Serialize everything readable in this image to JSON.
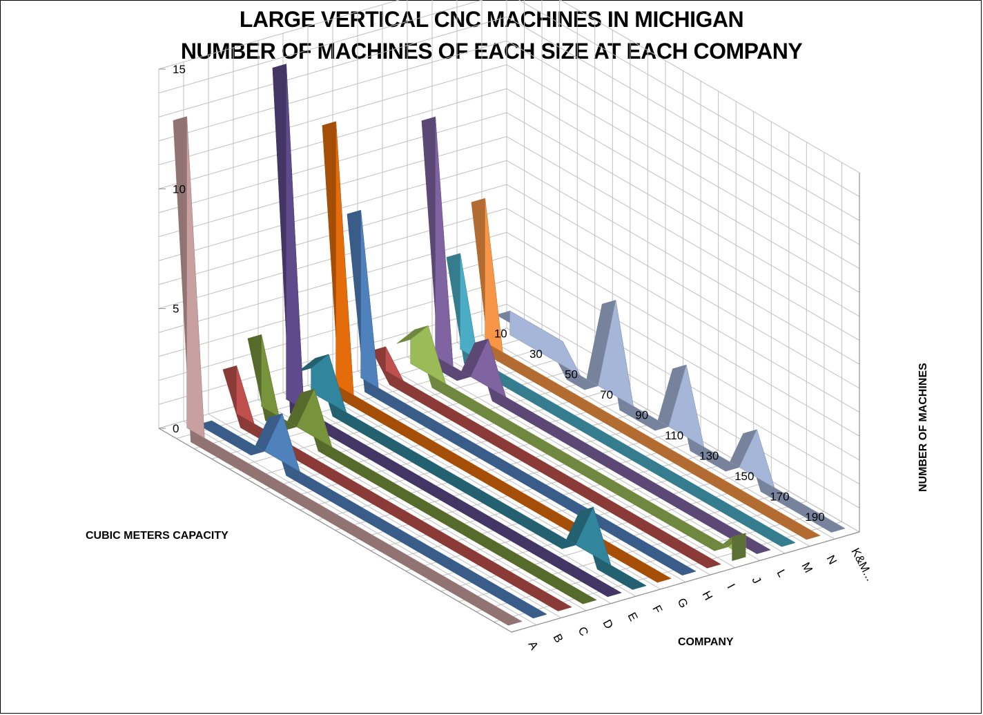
{
  "chart_data": {
    "type": "area",
    "title_line1": "LARGE VERTICAL CNC MACHINES IN MICHIGAN",
    "title_line2": "NUMBER OF MACHINES OF EACH SIZE AT EACH COMPANY",
    "xlabel": "CUBIC METERS CAPACITY",
    "zlabel": "COMPANY",
    "ylabel": "NUMBER OF MACHINES",
    "y_ticks": [
      "0",
      "5",
      "10",
      "15"
    ],
    "ylim": [
      0,
      15
    ],
    "capacity_categories": [
      "10",
      "20",
      "30",
      "40",
      "50",
      "60",
      "70",
      "80",
      "90",
      "100",
      "110",
      "120",
      "130",
      "140",
      "150",
      "160",
      "170",
      "180",
      "190",
      "200"
    ],
    "capacity_tick_labels": [
      "10",
      "30",
      "50",
      "70",
      "90",
      "110",
      "130",
      "150",
      "170",
      "190"
    ],
    "companies": [
      "A",
      "B",
      "C",
      "D",
      "E",
      "F",
      "G",
      "H",
      "I",
      "J",
      "L",
      "M",
      "N",
      "K&M..."
    ],
    "series": [
      {
        "name": "A",
        "color": "#c9a0a0",
        "values": [
          13,
          0,
          0,
          0,
          0,
          0,
          0,
          0,
          0,
          0,
          0,
          0,
          0,
          0,
          0,
          0,
          0,
          0,
          0,
          0
        ]
      },
      {
        "name": "B",
        "color": "#4f81bd",
        "values": [
          0,
          0,
          0,
          0,
          2,
          0,
          0,
          0,
          0,
          0,
          0,
          0,
          0,
          0,
          0,
          0,
          0,
          0,
          0,
          0
        ]
      },
      {
        "name": "C",
        "color": "#c0504d",
        "values": [
          2,
          0,
          0,
          0,
          0,
          0,
          0,
          0,
          0,
          0,
          0,
          0,
          0,
          0,
          0,
          0,
          0,
          0,
          0,
          0
        ]
      },
      {
        "name": "D",
        "color": "#77933c",
        "values": [
          3,
          0,
          0,
          2,
          0,
          0,
          0,
          0,
          0,
          0,
          0,
          0,
          0,
          0,
          0,
          0,
          0,
          0,
          0,
          0
        ]
      },
      {
        "name": "E",
        "color": "#5f4b8b",
        "values": [
          14,
          0,
          0,
          0,
          0,
          0,
          0,
          0,
          0,
          0,
          0,
          0,
          0,
          0,
          0,
          0,
          0,
          0,
          0,
          0
        ]
      },
      {
        "name": "F",
        "color": "#31859c",
        "values": [
          1,
          2,
          0,
          0,
          0,
          0,
          0,
          0,
          0,
          0,
          0,
          0,
          0,
          0,
          0,
          0,
          2,
          0,
          0,
          0
        ]
      },
      {
        "name": "G",
        "color": "#e46c0a",
        "values": [
          11,
          0,
          0,
          0,
          0,
          0,
          0,
          0,
          0,
          0,
          0,
          0,
          0,
          0,
          0,
          0,
          0,
          0,
          0,
          0
        ]
      },
      {
        "name": "H",
        "color": "#4f81bd",
        "values": [
          7,
          0,
          0,
          0,
          0,
          0,
          0,
          0,
          0,
          0,
          0,
          0,
          0,
          0,
          0,
          0,
          0,
          0,
          0,
          0
        ]
      },
      {
        "name": "I",
        "color": "#c0504d",
        "values": [
          1,
          0,
          0,
          0,
          0,
          0,
          0,
          0,
          0,
          0,
          0,
          0,
          0,
          0,
          0,
          0,
          0,
          0,
          0,
          0
        ]
      },
      {
        "name": "J",
        "color": "#9bbb59",
        "values": [
          1,
          2,
          0,
          0,
          0,
          0,
          0,
          0,
          0,
          0,
          0,
          0,
          0,
          0,
          0,
          0,
          0,
          0,
          0,
          1
        ]
      },
      {
        "name": "L",
        "color": "#8064a2",
        "values": [
          10,
          0,
          0,
          2,
          0,
          0,
          0,
          0,
          0,
          0,
          0,
          0,
          0,
          0,
          0,
          0,
          0,
          0,
          0,
          0
        ]
      },
      {
        "name": "M",
        "color": "#4bacc6",
        "values": [
          4,
          0,
          0,
          0,
          0,
          0,
          0,
          0,
          0,
          0,
          0,
          0,
          0,
          0,
          0,
          0,
          0,
          0,
          0,
          0
        ]
      },
      {
        "name": "N",
        "color": "#f79646",
        "values": [
          6,
          0,
          0,
          0,
          0,
          0,
          0,
          0,
          0,
          0,
          0,
          0,
          0,
          0,
          0,
          0,
          0,
          0,
          0,
          0
        ]
      },
      {
        "name": "K&M...",
        "color": "#a5b6d8",
        "values": [
          1,
          1,
          1,
          1,
          0,
          0,
          4,
          0,
          0,
          0,
          3,
          0,
          0,
          0,
          2,
          0,
          0,
          0,
          0,
          0
        ]
      }
    ]
  }
}
